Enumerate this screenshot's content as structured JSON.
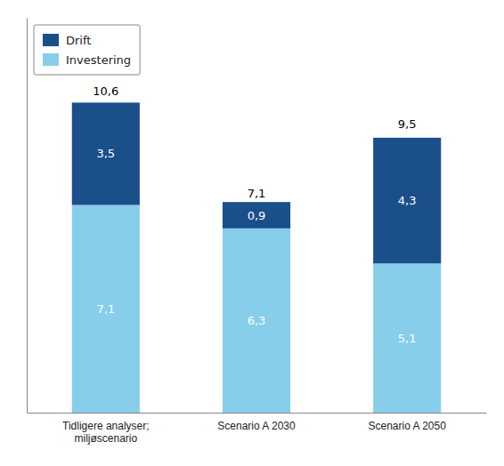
{
  "chart_data": {
    "type": "bar",
    "stacked": true,
    "categories": [
      "Tidligere analyser;\nmiljøscenario",
      "Scenario A 2030",
      "Scenario A 2050"
    ],
    "series": [
      {
        "name": "Investering",
        "color": "#87CEEB",
        "values": [
          7.1,
          6.3,
          5.1
        ],
        "value_labels": [
          "7,1",
          "6,3",
          "5,1"
        ]
      },
      {
        "name": "Drift",
        "color": "#1B4F8A",
        "values": [
          3.5,
          0.9,
          4.3
        ],
        "value_labels": [
          "3,5",
          "0,9",
          "4,3"
        ]
      }
    ],
    "totals": [
      10.6,
      7.1,
      9.5
    ],
    "total_labels": [
      "10,6",
      "7,1",
      "9,5"
    ],
    "ylim": [
      0,
      13.5
    ],
    "data_labels": true,
    "tick_labels": "x",
    "legend": "upper left"
  }
}
